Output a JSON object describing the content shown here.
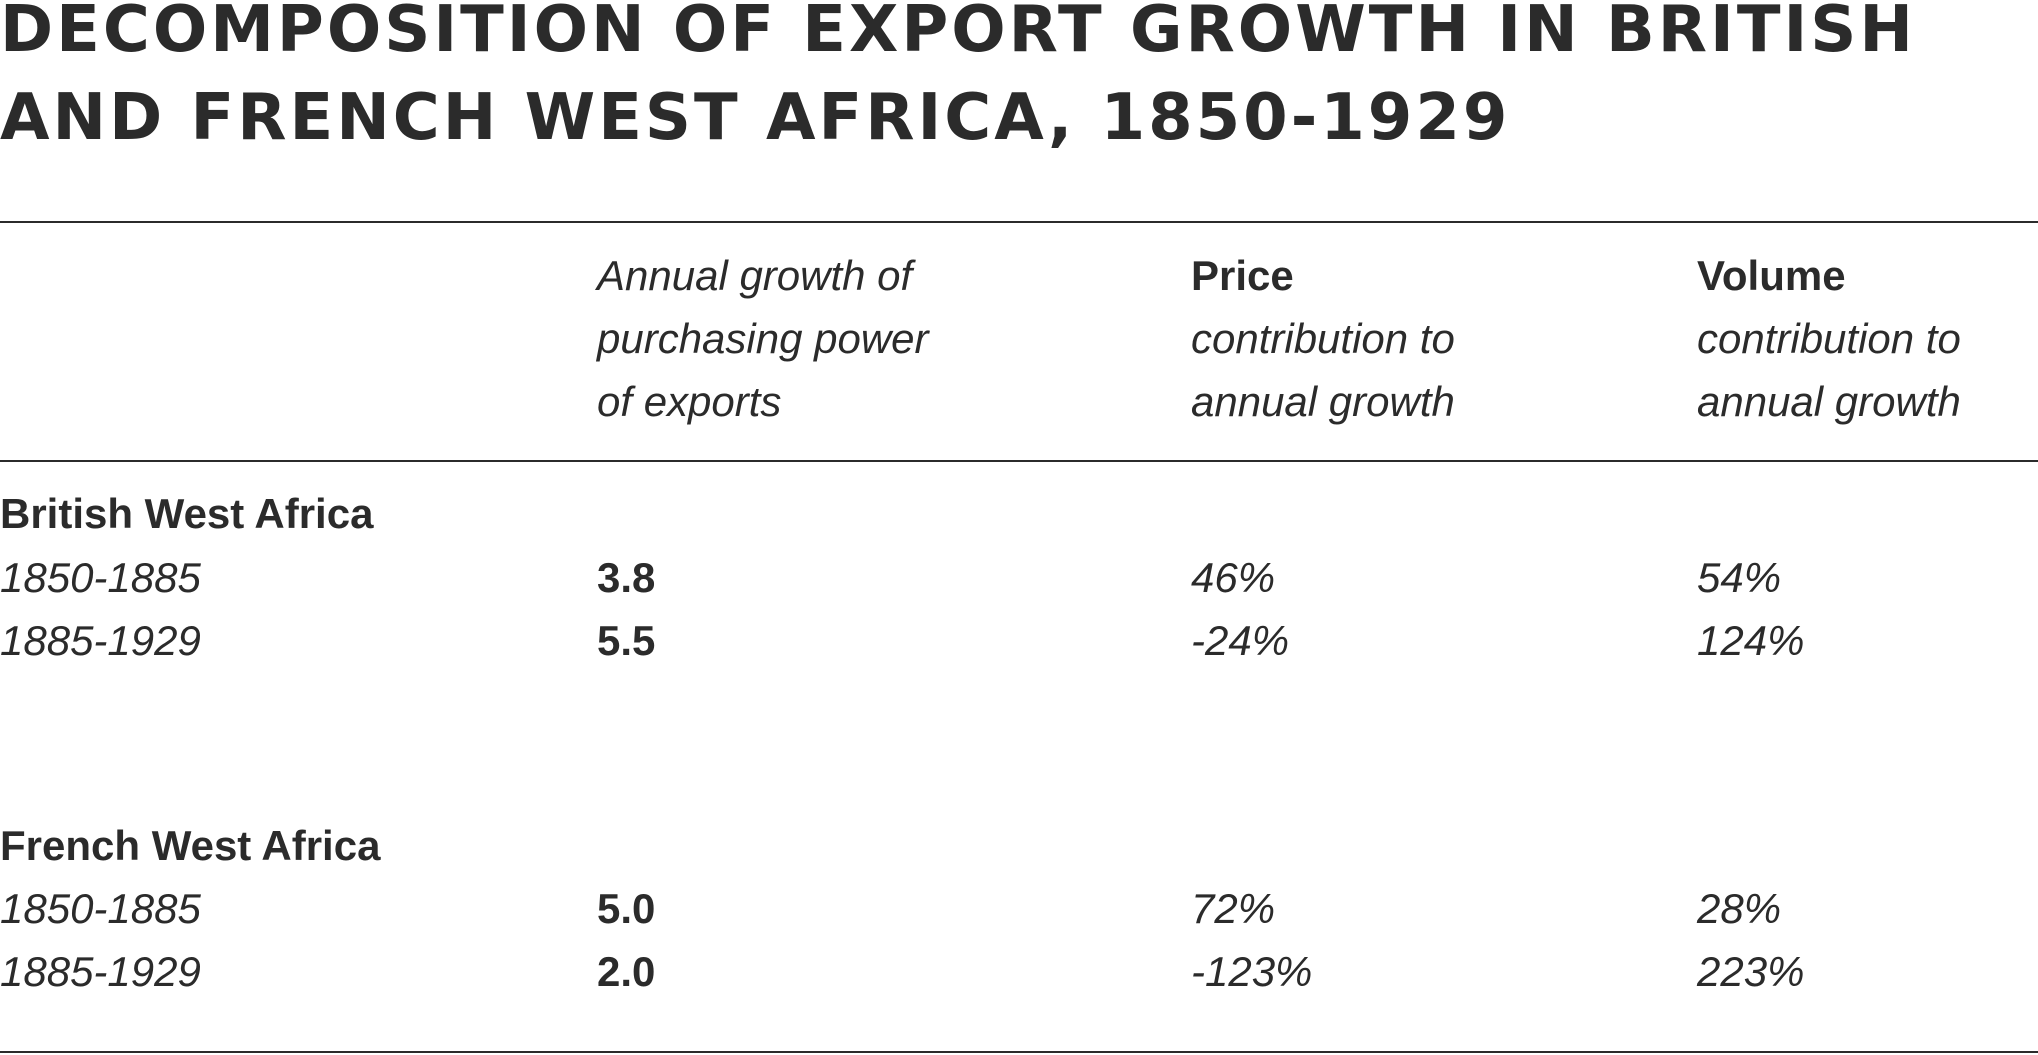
{
  "title": {
    "line1": "DECOMPOSITION OF EXPORT GROWTH IN BRITISH",
    "line2": "AND FRENCH WEST AFRICA, 1850-1929"
  },
  "table": {
    "headers": {
      "col1": {
        "line1": "Annual growth of",
        "line2": "purchasing power",
        "line3": "of exports"
      },
      "col2": {
        "bold": "Price",
        "line2": "contribution to",
        "line3": "annual growth"
      },
      "col3": {
        "bold": "Volume",
        "line2": "contribution to",
        "line3": "annual growth"
      }
    },
    "groups": [
      {
        "name": "British West Africa",
        "rows": [
          {
            "period": "1850-1885",
            "growth": "3.8",
            "price": "46%",
            "volume": "54%"
          },
          {
            "period": "1885-1929",
            "growth": "5.5",
            "price": "-24%",
            "volume": "124%"
          }
        ]
      },
      {
        "name": "French West Africa",
        "rows": [
          {
            "period": "1850-1885",
            "growth": "5.0",
            "price": "72%",
            "volume": "28%"
          },
          {
            "period": "1885-1929",
            "growth": "2.0",
            "price": "-123%",
            "volume": "223%"
          }
        ]
      }
    ]
  }
}
